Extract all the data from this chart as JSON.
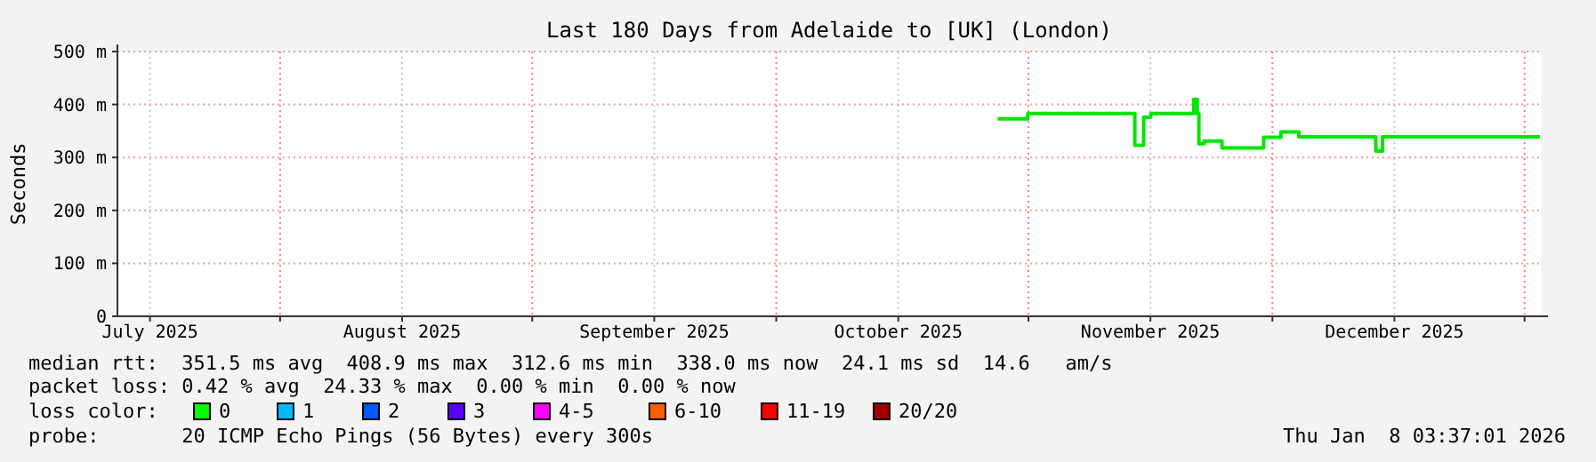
{
  "chart_data": {
    "type": "step",
    "title": "Last 180 Days from Adelaide to [UK] (London)",
    "ylabel": "Seconds",
    "x": [
      "2025-10-28T05:00",
      "2025-10-31T06:00",
      "2025-10-31T22:00",
      "2025-11-13T21:00",
      "2025-11-14T02:00",
      "2025-11-14T23:00",
      "2025-11-15T04:00",
      "2025-11-16T01:00",
      "2025-11-20T22:00",
      "2025-11-21T08:00",
      "2025-11-21T18:00",
      "2025-11-21T23:00",
      "2025-11-22T15:00",
      "2025-11-24T19:00",
      "2025-11-28T02:00",
      "2025-11-29T22:00",
      "2025-12-02T01:00",
      "2025-12-03T20:00",
      "2025-12-04T06:00",
      "2025-12-13T12:00",
      "2025-12-13T17:00",
      "2025-12-14T07:00",
      "2025-12-14T13:00",
      "2026-01-02T21:00"
    ],
    "series": [
      {
        "color": "#00e600",
        "values": [
          373,
          373,
          383,
          383,
          323,
          323,
          376,
          383,
          383,
          410,
          383,
          326,
          331,
          318,
          318,
          338,
          348,
          348,
          339,
          339,
          312,
          312,
          339,
          339
        ]
      }
    ],
    "xlim": [
      "2025-07-12",
      "2026-01-03"
    ],
    "xticks": [
      {
        "value": "2025-07-16",
        "label": "July 2025"
      },
      {
        "value": "2025-08-01",
        "label": null
      },
      {
        "value": "2025-08-16",
        "label": "August 2025"
      },
      {
        "value": "2025-09-01",
        "label": null
      },
      {
        "value": "2025-09-16",
        "label": "September 2025"
      },
      {
        "value": "2025-10-01",
        "label": null
      },
      {
        "value": "2025-10-16",
        "label": "October 2025"
      },
      {
        "value": "2025-11-01",
        "label": null
      },
      {
        "value": "2025-11-16",
        "label": "November 2025"
      },
      {
        "value": "2025-12-01",
        "label": null
      },
      {
        "value": "2025-12-16",
        "label": "December 2025"
      },
      {
        "value": "2026-01-01",
        "label": null
      }
    ],
    "ylim": [
      0,
      500
    ],
    "yticks": [
      0,
      {
        "value": 100,
        "label": "100 m"
      },
      {
        "value": 200,
        "label": "200 m"
      },
      {
        "value": 300,
        "label": "300 m"
      },
      {
        "value": 400,
        "label": "400 m"
      },
      {
        "value": 500,
        "label": "500 m"
      }
    ],
    "grid": true,
    "annotations": [
      "median rtt:  351.5 ms avg  408.9 ms max  312.6 ms min  338.0 ms now  24.1 ms sd  14.6   am/s",
      "packet loss: 0.42 % avg  24.33 % max  0.00 % min  0.00 % now",
      "loss color:",
      "0",
      "1",
      "2",
      "3",
      "4-5",
      "6-10",
      "11-19",
      "20/20",
      "probe:       20 ICMP Echo Pings (56 Bytes) every 300s",
      "Thu Jan  8 03:37:01 2026"
    ]
  }
}
